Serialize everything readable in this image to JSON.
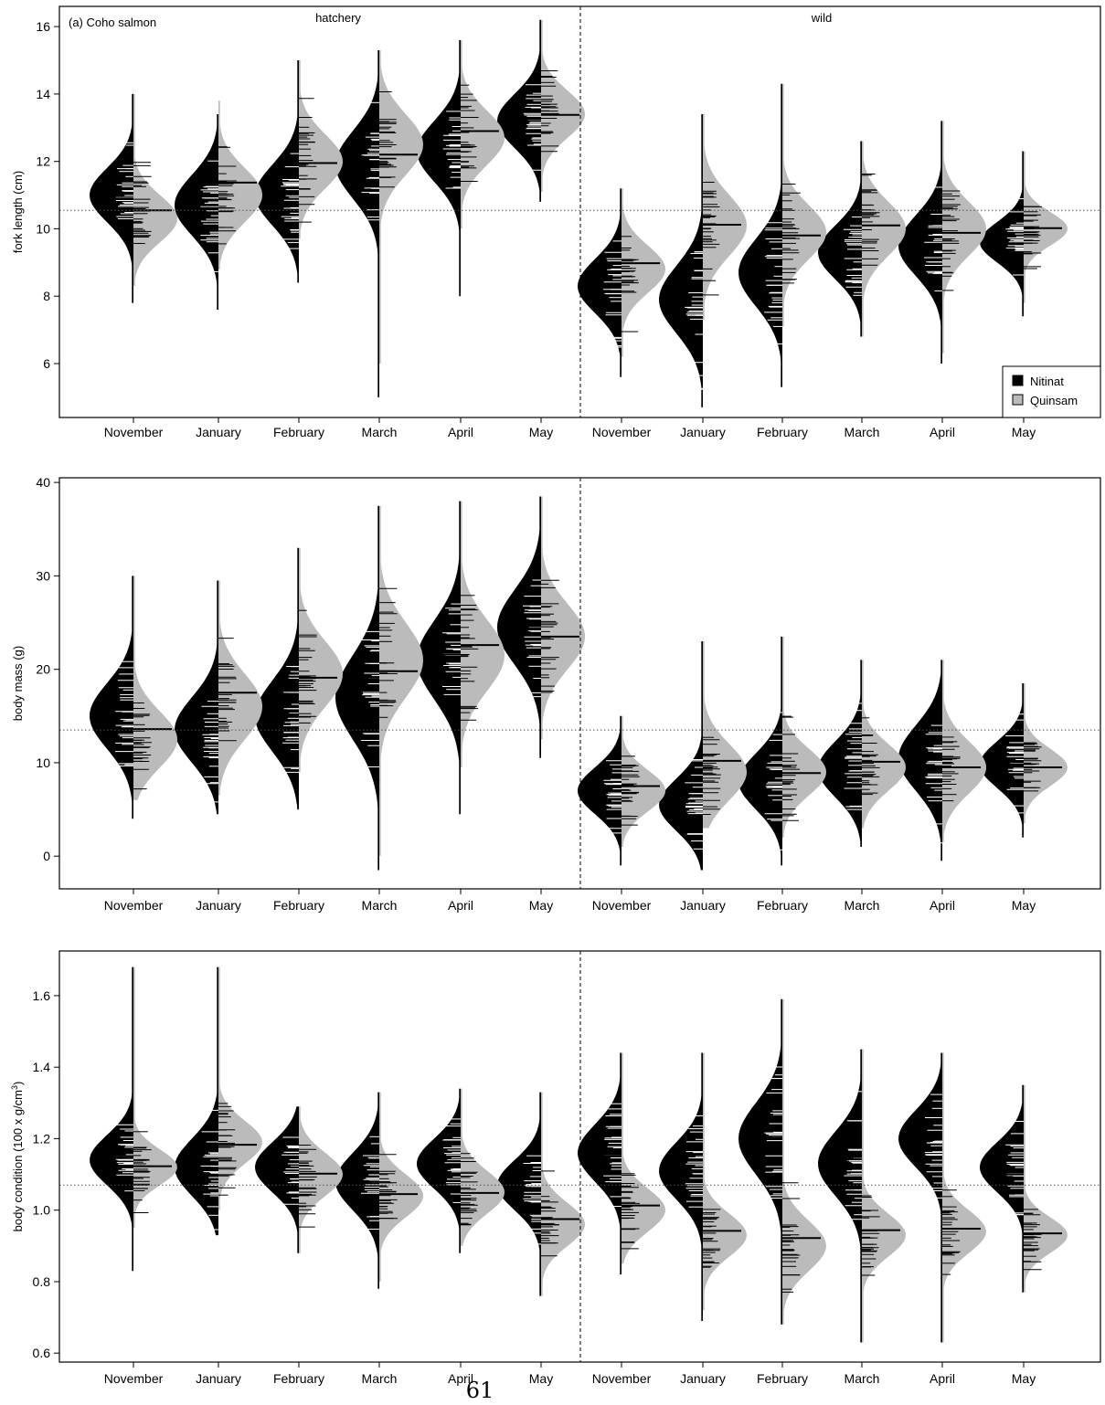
{
  "page_number": "61",
  "colors": {
    "nitinat": "#000000",
    "quinsam": "#bbbbbb",
    "border": "#000000",
    "reference_line": "#555555"
  },
  "legend": {
    "position": "bottom-right",
    "entries": [
      "Nitinat",
      "Quinsam"
    ]
  },
  "chart_data": [
    {
      "type": "beanplot",
      "panel_label": "(a) Coho salmon",
      "group_labels": [
        "hatchery",
        "wild"
      ],
      "categories": [
        "November",
        "January",
        "February",
        "March",
        "April",
        "May",
        "November",
        "January",
        "February",
        "March",
        "April",
        "May"
      ],
      "ylabel": "fork length (cm)",
      "ylim": [
        4.4,
        16.6
      ],
      "yticks": [
        "6",
        "8",
        "10",
        "12",
        "14",
        "16"
      ],
      "overall_mean": 10.55,
      "series": [
        {
          "name": "Nitinat",
          "side": "left",
          "means": [
            10.9,
            10.62,
            11.02,
            11.95,
            12.3,
            13.2,
            8.32,
            8.2,
            8.68,
            9.3,
            9.42,
            9.55
          ],
          "centers": [
            11.0,
            10.7,
            11.0,
            11.9,
            12.3,
            13.2,
            8.3,
            7.9,
            8.7,
            9.3,
            9.5,
            9.6
          ],
          "sds": [
            0.8,
            0.9,
            0.9,
            1.0,
            0.9,
            0.8,
            0.8,
            1.0,
            1.0,
            0.8,
            0.9,
            0.6
          ],
          "ranges": [
            [
              7.8,
              14.0
            ],
            [
              7.6,
              13.4
            ],
            [
              8.4,
              15.0
            ],
            [
              5.0,
              15.3
            ],
            [
              8.0,
              15.6
            ],
            [
              10.8,
              16.2
            ],
            [
              5.6,
              11.2
            ],
            [
              4.7,
              13.4
            ],
            [
              5.3,
              14.3
            ],
            [
              6.8,
              12.6
            ],
            [
              6.0,
              13.2
            ],
            [
              7.4,
              12.3
            ]
          ]
        },
        {
          "name": "Quinsam",
          "side": "right",
          "means": [
            10.55,
            11.37,
            11.95,
            12.2,
            12.9,
            13.38,
            8.98,
            10.12,
            9.8,
            10.1,
            9.88,
            10.02
          ],
          "centers": [
            10.3,
            11.0,
            12.0,
            12.5,
            12.7,
            13.4,
            8.8,
            10.1,
            9.9,
            10.0,
            10.0,
            10.0
          ],
          "sds": [
            0.7,
            0.8,
            0.8,
            0.9,
            0.8,
            0.7,
            0.7,
            0.9,
            0.8,
            0.8,
            0.8,
            0.5
          ],
          "ranges": [
            [
              8.3,
              14.0
            ],
            [
              8.8,
              13.8
            ],
            [
              9.7,
              15.0
            ],
            [
              6.0,
              15.3
            ],
            [
              10.0,
              15.6
            ],
            [
              11.1,
              16.2
            ],
            [
              6.2,
              11.2
            ],
            [
              7.3,
              13.4
            ],
            [
              7.1,
              14.3
            ],
            [
              6.8,
              12.6
            ],
            [
              6.3,
              13.2
            ],
            [
              7.8,
              12.3
            ]
          ]
        }
      ]
    },
    {
      "type": "beanplot",
      "panel_label": "",
      "group_labels": [],
      "categories": [
        "November",
        "January",
        "February",
        "March",
        "April",
        "May",
        "November",
        "January",
        "February",
        "March",
        "April",
        "May"
      ],
      "ylabel": "body mass (g)",
      "ylim": [
        -3.5,
        40.5
      ],
      "yticks": [
        "0",
        "10",
        "20",
        "30",
        "40"
      ],
      "overall_mean": 13.5,
      "series": [
        {
          "name": "Nitinat",
          "side": "left",
          "means": [
            14.9,
            13.6,
            15.2,
            18.9,
            21.6,
            24.6,
            6.9,
            6.4,
            8.1,
            9.3,
            10.3,
            9.8
          ],
          "centers": [
            15.0,
            13.5,
            15.0,
            17.0,
            21.0,
            24.5,
            7.0,
            5.5,
            8.0,
            9.3,
            10.5,
            9.8
          ],
          "sds": [
            3.5,
            3.5,
            3.8,
            4.5,
            4.2,
            4.0,
            2.5,
            2.8,
            3.0,
            3.0,
            3.5,
            2.5
          ],
          "ranges": [
            [
              4.0,
              30.0
            ],
            [
              4.5,
              29.5
            ],
            [
              5.0,
              33.0
            ],
            [
              -1.5,
              37.5
            ],
            [
              4.5,
              38.0
            ],
            [
              10.5,
              38.5
            ],
            [
              -1.0,
              15.0
            ],
            [
              -1.5,
              23.0
            ],
            [
              -1.0,
              23.5
            ],
            [
              1.0,
              21.0
            ],
            [
              -0.5,
              21.0
            ],
            [
              2.0,
              18.5
            ]
          ]
        },
        {
          "name": "Quinsam",
          "side": "right",
          "means": [
            13.6,
            17.5,
            19.1,
            19.8,
            22.6,
            23.5,
            7.5,
            10.2,
            8.9,
            10.1,
            9.5,
            9.5
          ],
          "centers": [
            12.5,
            16.0,
            19.5,
            21.0,
            21.5,
            23.5,
            7.0,
            9.0,
            9.0,
            9.5,
            9.5,
            9.5
          ],
          "sds": [
            3.0,
            3.5,
            3.5,
            4.0,
            3.8,
            3.5,
            2.2,
            3.0,
            2.5,
            2.5,
            2.8,
            2.0
          ],
          "ranges": [
            [
              6.0,
              30.0
            ],
            [
              6.5,
              29.5
            ],
            [
              9.0,
              33.0
            ],
            [
              0.0,
              37.5
            ],
            [
              9.5,
              38.0
            ],
            [
              12.5,
              38.5
            ],
            [
              1.0,
              15.0
            ],
            [
              3.0,
              23.0
            ],
            [
              2.0,
              23.5
            ],
            [
              3.0,
              21.0
            ],
            [
              1.5,
              21.0
            ],
            [
              3.5,
              18.5
            ]
          ]
        }
      ]
    },
    {
      "type": "beanplot",
      "panel_label": "",
      "group_labels": [],
      "categories": [
        "November",
        "January",
        "February",
        "March",
        "April",
        "May",
        "November",
        "January",
        "February",
        "March",
        "April",
        "May"
      ],
      "ylabel": "body condition (100 x g/cm",
      "ylabel_sup": "3",
      "ylabel_end": ")",
      "ylim": [
        0.575,
        1.725
      ],
      "yticks": [
        "0.6",
        "0.8",
        "1.0",
        "1.2",
        "1.4",
        "1.6"
      ],
      "overall_mean": 1.07,
      "series": [
        {
          "name": "Nitinat",
          "side": "left",
          "means": [
            1.148,
            1.135,
            1.12,
            1.08,
            1.137,
            1.062,
            1.152,
            1.108,
            1.203,
            1.142,
            1.197,
            1.1
          ],
          "centers": [
            1.14,
            1.12,
            1.12,
            1.08,
            1.13,
            1.07,
            1.16,
            1.11,
            1.2,
            1.13,
            1.2,
            1.12
          ],
          "sds": [
            0.07,
            0.08,
            0.07,
            0.08,
            0.07,
            0.07,
            0.08,
            0.08,
            0.1,
            0.09,
            0.08,
            0.07
          ],
          "ranges": [
            [
              0.83,
              1.68
            ],
            [
              0.93,
              1.68
            ],
            [
              0.88,
              1.29
            ],
            [
              0.78,
              1.33
            ],
            [
              0.88,
              1.34
            ],
            [
              0.76,
              1.33
            ],
            [
              0.82,
              1.44
            ],
            [
              0.69,
              1.44
            ],
            [
              0.68,
              1.59
            ],
            [
              0.63,
              1.45
            ],
            [
              0.63,
              1.44
            ],
            [
              0.77,
              1.35
            ]
          ]
        },
        {
          "name": "Quinsam",
          "side": "right",
          "means": [
            1.123,
            1.183,
            1.102,
            1.045,
            1.048,
            0.975,
            1.013,
            0.942,
            0.922,
            0.944,
            0.948,
            0.935
          ],
          "centers": [
            1.12,
            1.19,
            1.1,
            1.04,
            1.05,
            0.96,
            1.0,
            0.93,
            0.9,
            0.93,
            0.94,
            0.93
          ],
          "sds": [
            0.05,
            0.06,
            0.06,
            0.06,
            0.06,
            0.06,
            0.06,
            0.06,
            0.07,
            0.06,
            0.06,
            0.05
          ],
          "ranges": [
            [
              0.95,
              1.68
            ],
            [
              1.0,
              1.68
            ],
            [
              0.88,
              1.29
            ],
            [
              0.8,
              1.33
            ],
            [
              0.9,
              1.34
            ],
            [
              0.76,
              1.33
            ],
            [
              0.85,
              1.44
            ],
            [
              0.72,
              1.44
            ],
            [
              0.68,
              1.59
            ],
            [
              0.63,
              1.45
            ],
            [
              0.63,
              1.44
            ],
            [
              0.77,
              1.35
            ]
          ]
        }
      ]
    }
  ]
}
